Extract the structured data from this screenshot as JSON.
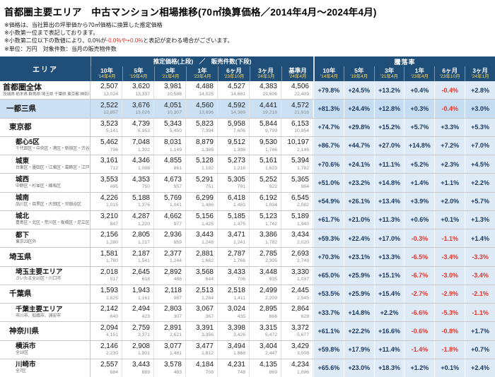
{
  "title": "首都圏主要エリア　中古マンション相場推移(70㎡換算価格／2014年4月～2024年4月)",
  "notes": [
    "※価格は、当社算出の坪単価から70㎡価格に換算した推定価格",
    "※小数第一位まで表記しております。"
  ],
  "note3": {
    "pre": "※小数第二位以下の数値により、0.0%が",
    "red": "-0.0%や+0.0%",
    "post": "と表記が変わる場合がございます。"
  },
  "unit_note": "※単位：万円　対象件数：当月の販売物件数",
  "colors": {
    "header_bg": "#1F4E79",
    "header_date": "#FFD966",
    "highlight_row": "#CBE1F3",
    "rate_cell_bg": "#DEEBF7",
    "rate_cell_bg_highlight": "#C6DDF1",
    "positive": "#17375E",
    "negative": "#E8332A"
  },
  "chart_data": {
    "type": "table",
    "title": "首都圏主要エリア　中古マンション相場推移(70㎡換算価格／2014年4月～2024年4月)",
    "header": {
      "area_label": "エリア",
      "price_label": "推定価格(上段)　／　販売件数(下段)",
      "rate_label": "騰落率",
      "price_cols": [
        {
          "period": "10年",
          "date": "'14年4月"
        },
        {
          "period": "5年",
          "date": "'19年4月"
        },
        {
          "period": "3年",
          "date": "'21年4月"
        },
        {
          "period": "1年",
          "date": "'23年4月"
        },
        {
          "period": "6ヶ月",
          "date": "'23年10月"
        },
        {
          "period": "3ヶ月",
          "date": "'24年1月"
        },
        {
          "period": "基準月",
          "date": "'24年4月"
        }
      ],
      "rate_cols": [
        {
          "period": "10年",
          "date": "'14年4月"
        },
        {
          "period": "5年",
          "date": "'19年4月"
        },
        {
          "period": "3年",
          "date": "'21年4月"
        },
        {
          "period": "1年",
          "date": "'23年4月"
        },
        {
          "period": "6ヶ月",
          "date": "'23年10月"
        },
        {
          "period": "3ヶ月",
          "date": "'24年1月"
        }
      ]
    },
    "rows": [
      {
        "type": "total",
        "highlight": false,
        "name": "首都圏全体",
        "sub": "茨城県 栃木県 群馬県 埼玉県 千葉県 東京都 神奈川県 山梨県",
        "prices": [
          "2,507",
          "3,620",
          "3,981",
          "4,488",
          "4,527",
          "4,383",
          "4,506"
        ],
        "counts": [
          "13,024",
          "13,337",
          "10,588",
          "14,025",
          "14,681",
          "19,606",
          "22,409"
        ],
        "rates": [
          "+79.8%",
          "+24.5%",
          "+13.2%",
          "+0.4%",
          "-0.4%",
          "+2.8%"
        ]
      },
      {
        "type": "group",
        "highlight": true,
        "name": "一都三県",
        "sub": "",
        "prices": [
          "2,522",
          "3,676",
          "4,051",
          "4,560",
          "4,592",
          "4,441",
          "4,572"
        ],
        "counts": [
          "12,897",
          "13,026",
          "10,307",
          "13,696",
          "14,369",
          "19,218",
          "21,916"
        ],
        "rates": [
          "+81.3%",
          "+24.4%",
          "+12.8%",
          "+0.3%",
          "-0.4%",
          "+3.0%"
        ]
      },
      {
        "type": "pref",
        "highlight": false,
        "name": "東京都",
        "sub": "",
        "prices": [
          "3,523",
          "4,739",
          "5,343",
          "5,823",
          "5,958",
          "5,844",
          "6,153"
        ],
        "counts": [
          "5,141",
          "6,953",
          "5,450",
          "7,394",
          "7,606",
          "9,799",
          "10,954"
        ],
        "rates": [
          "+74.7%",
          "+29.8%",
          "+15.2%",
          "+5.7%",
          "+3.3%",
          "+5.3%"
        ]
      },
      {
        "type": "sub",
        "highlight": false,
        "name": "都心5区",
        "sub": "千代田区・中央区・港区・新宿区・渋谷区",
        "prices": [
          "5,462",
          "7,048",
          "8,031",
          "8,879",
          "9,512",
          "9,530",
          "10,197"
        ],
        "counts": [
          "796",
          "1,302",
          "1,149",
          "1,385",
          "1,398",
          "1,746",
          "2,146"
        ],
        "rates": [
          "+86.7%",
          "+44.7%",
          "+27.0%",
          "+14.8%",
          "+7.2%",
          "+7.0%"
        ]
      },
      {
        "type": "sub",
        "highlight": false,
        "name": "城東",
        "sub": "台東区・墨田区・江東区・葛飾区・江戸川区",
        "prices": [
          "3,161",
          "4,346",
          "4,855",
          "5,128",
          "5,273",
          "5,161",
          "5,394"
        ],
        "counts": [
          "712",
          "1,088",
          "861",
          "1,182",
          "1,218",
          "1,623",
          "1,782"
        ],
        "rates": [
          "+70.6%",
          "+24.1%",
          "+11.1%",
          "+5.2%",
          "+2.3%",
          "+4.5%"
        ]
      },
      {
        "type": "sub",
        "highlight": false,
        "name": "城西",
        "sub": "中野区・杉並区・練馬区",
        "prices": [
          "3,553",
          "4,353",
          "4,673",
          "5,291",
          "5,305",
          "5,252",
          "5,365"
        ],
        "counts": [
          "495",
          "750",
          "557",
          "751",
          "791",
          "922",
          "984"
        ],
        "rates": [
          "+51.0%",
          "+23.2%",
          "+14.8%",
          "+1.4%",
          "+1.1%",
          "+2.2%"
        ]
      },
      {
        "type": "sub",
        "highlight": false,
        "name": "城南",
        "sub": "品川区・目黒区・大田区・世田谷区",
        "prices": [
          "4,226",
          "5,188",
          "5,769",
          "6,299",
          "6,418",
          "6,192",
          "6,545"
        ],
        "counts": [
          "1,015",
          "1,376",
          "1,041",
          "1,486",
          "1,483",
          "1,934",
          "2,082"
        ],
        "rates": [
          "+54.9%",
          "+26.1%",
          "+13.4%",
          "+3.9%",
          "+2.0%",
          "+5.7%"
        ]
      },
      {
        "type": "sub",
        "highlight": false,
        "name": "城北",
        "sub": "豊島区・北区・荒川区・板橋区・足立区",
        "prices": [
          "3,210",
          "4,287",
          "4,662",
          "5,156",
          "5,185",
          "5,123",
          "5,189"
        ],
        "counts": [
          "847",
          "1,220",
          "977",
          "1,425",
          "1,475",
          "1,742",
          "1,940"
        ],
        "rates": [
          "+61.7%",
          "+21.0%",
          "+11.3%",
          "+0.6%",
          "+0.1%",
          "+1.3%"
        ]
      },
      {
        "type": "sub",
        "highlight": false,
        "name": "都下",
        "sub": "東京23区外",
        "prices": [
          "2,156",
          "2,805",
          "2,936",
          "3,443",
          "3,471",
          "3,386",
          "3,434"
        ],
        "counts": [
          "1,280",
          "1,217",
          "859",
          "1,248",
          "1,241",
          "1,782",
          "2,020"
        ],
        "rates": [
          "+59.3%",
          "+22.4%",
          "+17.0%",
          "-0.3%",
          "-1.1%",
          "+1.4%"
        ]
      },
      {
        "type": "pref",
        "highlight": false,
        "name": "埼玉県",
        "sub": "",
        "prices": [
          "1,581",
          "2,187",
          "2,377",
          "2,881",
          "2,787",
          "2,785",
          "2,693"
        ],
        "counts": [
          "1,780",
          "1,541",
          "1,244",
          "1,662",
          "1,766",
          "2,305",
          "2,749"
        ],
        "rates": [
          "+70.3%",
          "+23.1%",
          "+13.3%",
          "-6.5%",
          "-3.4%",
          "-3.3%"
        ]
      },
      {
        "type": "sub",
        "highlight": false,
        "name": "埼玉主要エリア",
        "sub": "さいたま全10区・川口市",
        "prices": [
          "2,018",
          "2,645",
          "2,892",
          "3,568",
          "3,433",
          "3,448",
          "3,330"
        ],
        "counts": [
          "517",
          "618",
          "486",
          "644",
          "706",
          "935",
          "1,037"
        ],
        "rates": [
          "+65.0%",
          "+25.9%",
          "+15.1%",
          "-6.7%",
          "-3.0%",
          "-3.4%"
        ]
      },
      {
        "type": "pref",
        "highlight": false,
        "name": "千葉県",
        "sub": "",
        "prices": [
          "1,593",
          "1,943",
          "2,118",
          "2,513",
          "2,518",
          "2,499",
          "2,445"
        ],
        "counts": [
          "1,825",
          "1,161",
          "987",
          "1,284",
          "1,411",
          "2,209",
          "2,545"
        ],
        "rates": [
          "+53.5%",
          "+25.9%",
          "+15.4%",
          "-2.7%",
          "-2.9%",
          "-2.1%"
        ]
      },
      {
        "type": "sub",
        "highlight": false,
        "name": "千葉主要エリア",
        "sub": "市川市、船橋市、浦安市",
        "prices": [
          "2,142",
          "2,494",
          "2,803",
          "3,067",
          "3,024",
          "2,895",
          "2,864"
        ],
        "counts": [
          "640",
          "423",
          "307",
          "367",
          "435",
          "666",
          "628"
        ],
        "rates": [
          "+33.7%",
          "+14.8%",
          "+2.2%",
          "-6.6%",
          "-5.3%",
          "-1.1%"
        ]
      },
      {
        "type": "pref",
        "highlight": false,
        "name": "神奈川県",
        "sub": "",
        "prices": [
          "2,094",
          "2,759",
          "2,891",
          "3,391",
          "3,398",
          "3,315",
          "3,372"
        ],
        "counts": [
          "4,151",
          "3,371",
          "2,621",
          "3,356",
          "3,426",
          "5,472",
          "5,677"
        ],
        "rates": [
          "+61.1%",
          "+22.2%",
          "+16.6%",
          "-0.6%",
          "-0.8%",
          "+1.7%"
        ]
      },
      {
        "type": "sub",
        "highlight": false,
        "name": "横浜市",
        "sub": "全18区",
        "prices": [
          "2,146",
          "2,908",
          "3,077",
          "3,477",
          "3,494",
          "3,404",
          "3,429"
        ],
        "counts": [
          "2,230",
          "1,901",
          "1,481",
          "1,812",
          "1,868",
          "2,447",
          "3,008"
        ],
        "rates": [
          "+59.8%",
          "+17.9%",
          "+11.4%",
          "-1.4%",
          "-1.8%",
          "+0.7%"
        ]
      },
      {
        "type": "sub",
        "highlight": false,
        "name": "川崎市",
        "sub": "全7区",
        "prices": [
          "2,557",
          "3,443",
          "3,578",
          "4,184",
          "4,231",
          "4,135",
          "4,234"
        ],
        "counts": [
          "684",
          "689",
          "483",
          "708",
          "748",
          "869",
          "1,096"
        ],
        "rates": [
          "+65.6%",
          "+23.0%",
          "+18.3%",
          "+1.2%",
          "+0.1%",
          "+2.4%"
        ]
      }
    ]
  }
}
